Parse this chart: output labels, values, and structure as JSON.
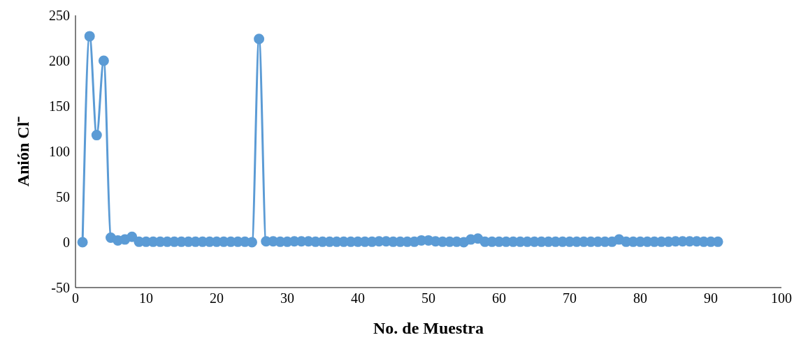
{
  "chart_data": {
    "type": "line",
    "xlabel": "No. de Muestra",
    "ylabel": "Anión Cl⁻",
    "x": [
      1,
      2,
      3,
      4,
      5,
      6,
      7,
      8,
      9,
      10,
      11,
      12,
      13,
      14,
      15,
      16,
      17,
      18,
      19,
      20,
      21,
      22,
      23,
      24,
      25,
      26,
      27,
      28,
      29,
      30,
      31,
      32,
      33,
      34,
      35,
      36,
      37,
      38,
      39,
      40,
      41,
      42,
      43,
      44,
      45,
      46,
      47,
      48,
      49,
      50,
      51,
      52,
      53,
      54,
      55,
      56,
      57,
      58,
      59,
      60,
      61,
      62,
      63,
      64,
      65,
      66,
      67,
      68,
      69,
      70,
      71,
      72,
      73,
      74,
      75,
      76,
      77,
      78,
      79,
      80,
      81,
      82,
      83,
      84,
      85,
      86,
      87,
      88,
      89,
      90,
      91
    ],
    "series": [
      {
        "color": "#5b9bd5",
        "values": [
          0,
          227,
          118,
          200,
          5,
          2,
          3,
          6,
          0.5,
          0.5,
          0.5,
          0.5,
          0.5,
          0.5,
          0.5,
          0.5,
          0.5,
          0.5,
          0.5,
          0.5,
          0.5,
          0.5,
          0.5,
          0.5,
          0,
          224,
          1,
          1,
          0.5,
          0.5,
          1,
          1,
          1,
          0.5,
          0.5,
          0.5,
          0.5,
          0.5,
          0.5,
          0.5,
          0.5,
          0.5,
          1,
          1,
          0.5,
          0.5,
          0.5,
          0.5,
          2,
          2,
          1,
          0.5,
          0.5,
          0.5,
          0,
          3,
          4,
          0.5,
          0.5,
          0.5,
          0.5,
          0.5,
          0.5,
          0.5,
          0.5,
          0.5,
          0.5,
          0.5,
          0.5,
          0.5,
          0.5,
          0.5,
          0.5,
          0.5,
          0.5,
          0.5,
          3,
          0.5,
          0.5,
          0.5,
          0.5,
          0.5,
          0.5,
          0.5,
          1,
          1,
          1,
          1,
          0.5,
          0.5,
          0.5
        ]
      }
    ],
    "xlim": [
      0,
      100
    ],
    "xticks": [
      0,
      10,
      20,
      30,
      40,
      50,
      60,
      70,
      80,
      90,
      100
    ],
    "ylim": [
      -50,
      250
    ],
    "yticks": [
      -50,
      0,
      50,
      100,
      150,
      200,
      250
    ],
    "grid": false,
    "legend": false,
    "marker": "circle",
    "line_style": "solid"
  }
}
